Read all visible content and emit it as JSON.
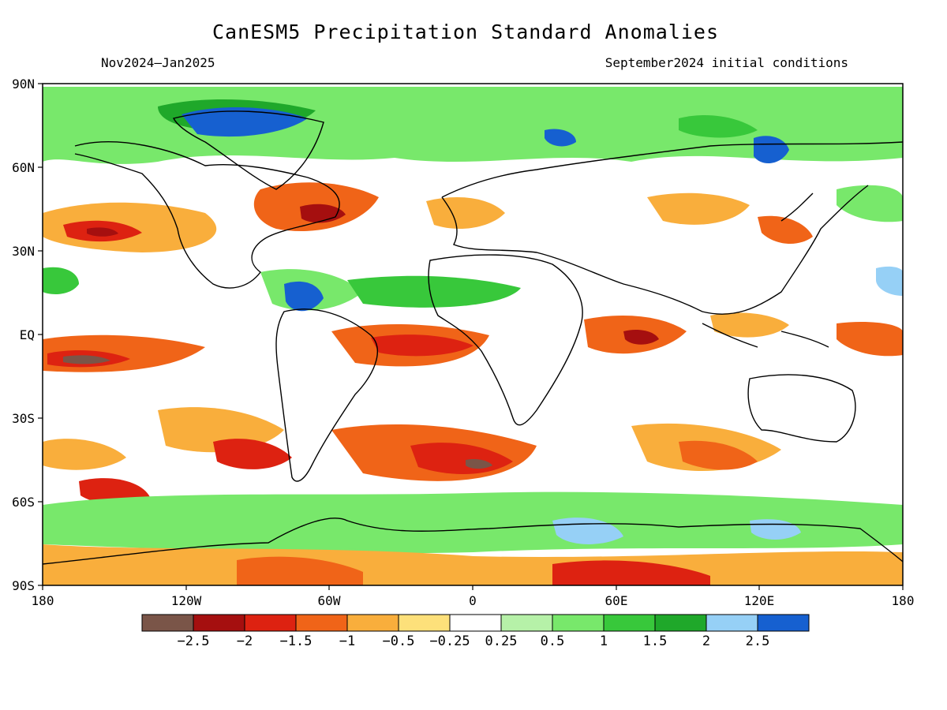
{
  "title": "CanESM5 Precipitation Standard Anomalies",
  "period": "Nov2024–Jan2025",
  "init": "September2024 initial conditions",
  "map": {
    "lat_ticks": [
      "90N",
      "60N",
      "30N",
      "EQ",
      "30S",
      "60S",
      "90S"
    ],
    "lon_ticks": [
      "180",
      "120W",
      "60W",
      "0",
      "60E",
      "120E",
      "180"
    ],
    "colors": {
      "ocean_background": "#ffffff",
      "coast": "#000000"
    }
  },
  "colorbar": {
    "colors": [
      "#7a5548",
      "#a50f0f",
      "#dd2211",
      "#f06418",
      "#f9ae3c",
      "#fde07a",
      "#ffffff",
      "#b6f1a8",
      "#78e86b",
      "#38c83b",
      "#1fa82a",
      "#96d0f6",
      "#1660d0"
    ],
    "labels": [
      "−2.5",
      "−2",
      "−1.5",
      "−1",
      "−0.5",
      "−0.25",
      "0.25",
      "0.5",
      "1",
      "1.5",
      "2",
      "2.5"
    ]
  }
}
